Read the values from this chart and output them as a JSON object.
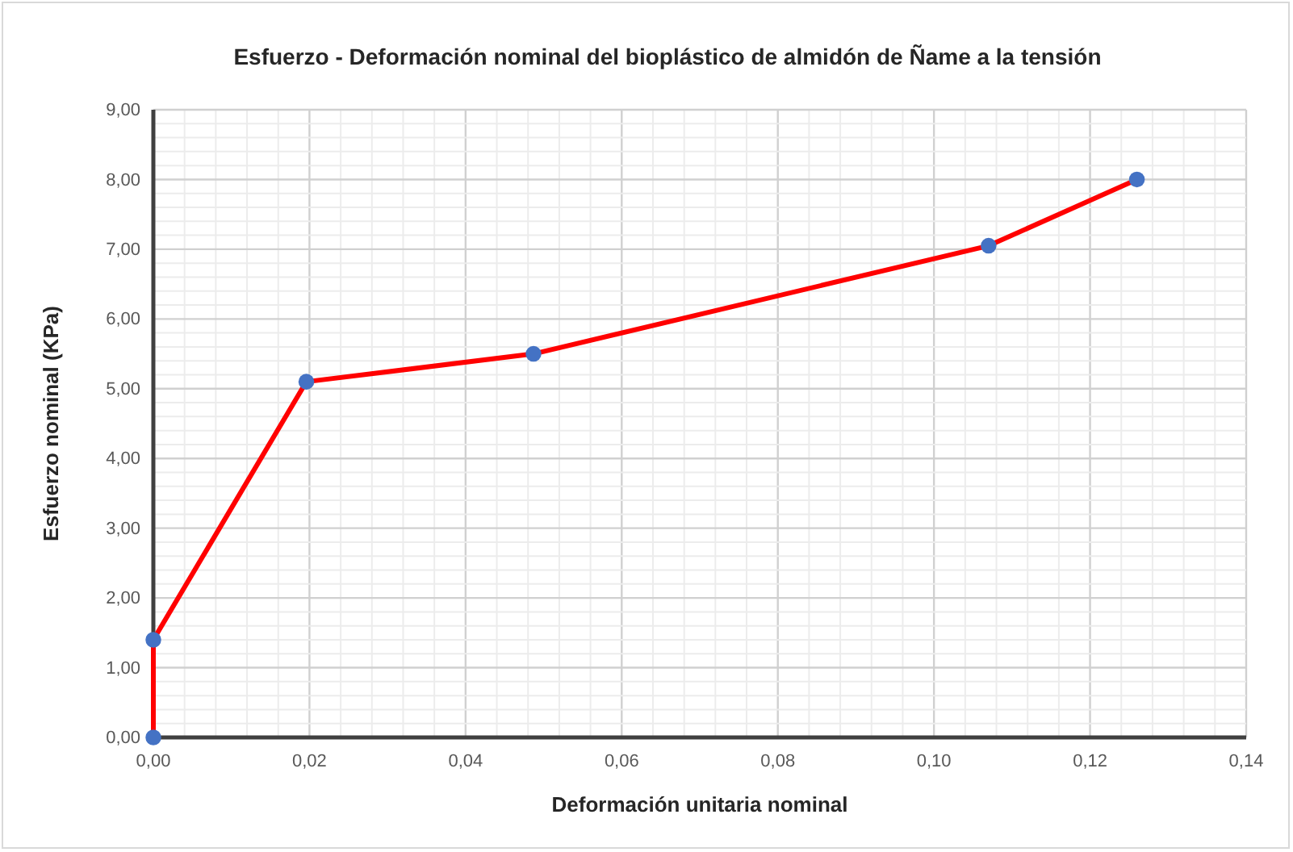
{
  "chart_data": {
    "type": "line",
    "title": "Esfuerzo - Deformación nominal del bioplástico de almidón de Ñame a la tensión",
    "xlabel": "Deformación unitaria nominal",
    "ylabel": "Esfuerzo nominal  (KPa)",
    "x": [
      0,
      0,
      0.0196,
      0.0487,
      0.107,
      0.126
    ],
    "series": [
      {
        "color": "#ff0000",
        "colors": [
          "#4472c4",
          "#4472c4",
          "#4472c4",
          "#4472c4",
          "#4472c4",
          "#4472c4"
        ],
        "values": [
          0,
          1.4,
          5.1,
          5.5,
          7.05,
          8.0
        ]
      }
    ],
    "marker": "circle",
    "line_style": "solid",
    "grid": true,
    "xlim": [
      0,
      0.14
    ],
    "xticks": [
      {
        "value": 0,
        "label": "0,00"
      },
      {
        "value": 0.02,
        "label": "0,02"
      },
      {
        "value": 0.04,
        "label": "0,04"
      },
      {
        "value": 0.06,
        "label": "0,06"
      },
      {
        "value": 0.08,
        "label": "0,08"
      },
      {
        "value": 0.1,
        "label": "0,10"
      },
      {
        "value": 0.12,
        "label": "0,12"
      },
      {
        "value": 0.14,
        "label": "0,14"
      }
    ],
    "ylim": [
      0,
      9
    ],
    "yticks": [
      {
        "value": 0,
        "label": "0,00"
      },
      {
        "value": 1,
        "label": "1,00"
      },
      {
        "value": 2,
        "label": "2,00"
      },
      {
        "value": 3,
        "label": "3,00"
      },
      {
        "value": 4,
        "label": "4,00"
      },
      {
        "value": 5,
        "label": "5,00"
      },
      {
        "value": 6,
        "label": "6,00"
      },
      {
        "value": 7,
        "label": "7,00"
      },
      {
        "value": 8,
        "label": "8,00"
      },
      {
        "value": 9,
        "label": "9,00"
      }
    ]
  }
}
